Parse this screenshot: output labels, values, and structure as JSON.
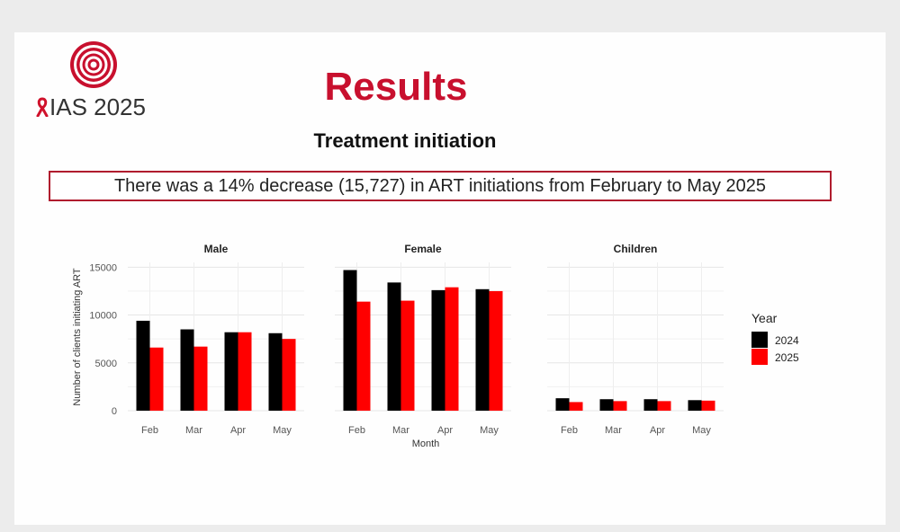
{
  "logo": {
    "text": "IAS 2025",
    "ribbon": "ↀ"
  },
  "title": "Results",
  "subtitle": "Treatment initiation",
  "callout": "There was a 14% decrease (15,727) in ART initiations from February to May 2025",
  "colors": {
    "title": "#c8102e",
    "series_2024": "#000000",
    "series_2025": "#ff0000",
    "callout_border": "#b01c2e"
  },
  "chart_data": [
    {
      "type": "bar",
      "panel": "Male",
      "categories": [
        "Feb",
        "Mar",
        "Apr",
        "May"
      ],
      "series": [
        {
          "name": "2024",
          "values": [
            9400,
            8500,
            8200,
            8100
          ]
        },
        {
          "name": "2025",
          "values": [
            6600,
            6700,
            8200,
            7500
          ]
        }
      ],
      "ylabel": "Number of clients initiating ART",
      "yticks": [
        0,
        5000,
        10000,
        15000
      ],
      "ylim": [
        0,
        15500
      ]
    },
    {
      "type": "bar",
      "panel": "Female",
      "categories": [
        "Feb",
        "Mar",
        "Apr",
        "May"
      ],
      "series": [
        {
          "name": "2024",
          "values": [
            14700,
            13400,
            12600,
            12700
          ]
        },
        {
          "name": "2025",
          "values": [
            11400,
            11500,
            12900,
            12500
          ]
        }
      ],
      "xlabel": "Month",
      "ylim": [
        0,
        15500
      ]
    },
    {
      "type": "bar",
      "panel": "Children",
      "categories": [
        "Feb",
        "Mar",
        "Apr",
        "May"
      ],
      "series": [
        {
          "name": "2024",
          "values": [
            1300,
            1200,
            1200,
            1100
          ]
        },
        {
          "name": "2025",
          "values": [
            900,
            1000,
            1000,
            1050
          ]
        }
      ],
      "ylim": [
        0,
        15500
      ]
    }
  ],
  "legend": {
    "title": "Year",
    "items": [
      "2024",
      "2025"
    ]
  }
}
